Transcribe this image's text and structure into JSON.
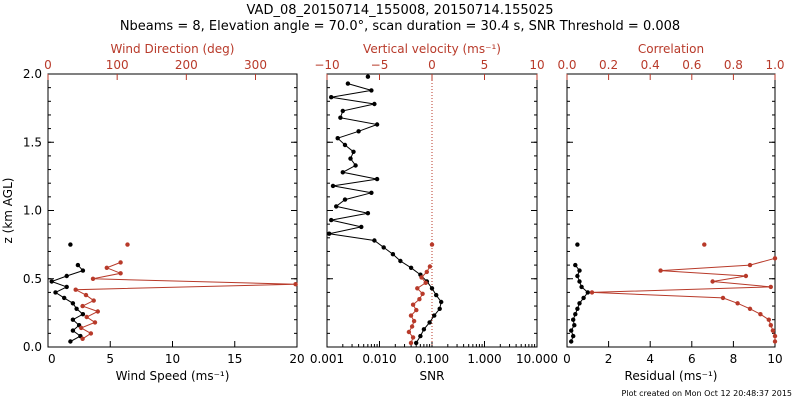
{
  "figure": {
    "title_line1": "VAD_08_20150714_155008, 20150714.155025",
    "title_line2": "Nbeams = 8, Elevation angle = 70.0°, scan duration = 30.4 s, SNR Threshold = 0.008",
    "footer": "Plot created on Mon Oct 12 20:48:37 2015",
    "colors": {
      "black": "#000000",
      "red": "#b83a2a"
    },
    "ylabel": "z (km AGL)",
    "ylim": [
      0,
      2.0
    ],
    "yticks": [
      "0.0",
      "0.5",
      "1.0",
      "1.5",
      "2.0"
    ]
  },
  "chart_data": [
    {
      "type": "line",
      "xlabel": "Wind Speed (ms⁻¹)",
      "top_xlabel": "Wind Direction (deg)",
      "xlim": [
        0,
        20
      ],
      "xticks": [
        "0",
        "5",
        "10",
        "15",
        "20"
      ],
      "top_xlim": [
        0,
        360
      ],
      "top_xticks": [
        "0",
        "100",
        "200",
        "300"
      ],
      "series": [
        {
          "axis": "bottom",
          "color": "black",
          "z": [
            0.04,
            0.08,
            0.12,
            0.16,
            0.2,
            0.24,
            0.28,
            0.32,
            0.36,
            0.4,
            0.44,
            0.48,
            0.52,
            0.56,
            0.6,
            0.75
          ],
          "values": [
            1.8,
            2.6,
            2.0,
            2.5,
            2.0,
            2.8,
            2.3,
            2.0,
            1.3,
            0.6,
            1.5,
            0.3,
            1.5,
            2.8,
            2.4,
            1.8
          ]
        },
        {
          "axis": "top",
          "color": "red",
          "z": [
            0.06,
            0.1,
            0.14,
            0.18,
            0.22,
            0.26,
            0.3,
            0.34,
            0.38,
            0.42,
            0.46,
            0.5,
            0.54,
            0.58,
            0.62,
            0.75
          ],
          "values": [
            50,
            62,
            48,
            68,
            56,
            72,
            50,
            66,
            55,
            40,
            358,
            65,
            105,
            85,
            105,
            115
          ]
        }
      ]
    },
    {
      "type": "line",
      "xlabel": "SNR",
      "top_xlabel": "Vertical velocity (ms⁻¹)",
      "xscale": "log",
      "xlim": [
        0.001,
        10
      ],
      "xticks": [
        "0.001",
        "0.010",
        "0.100",
        "1.000",
        "10.000"
      ],
      "top_xlim": [
        -10,
        10
      ],
      "top_xticks": [
        "−10",
        "−5",
        "0",
        "5",
        "10"
      ],
      "series": [
        {
          "axis": "bottom",
          "color": "black",
          "z": [
            0.03,
            0.08,
            0.13,
            0.18,
            0.23,
            0.28,
            0.33,
            0.38,
            0.43,
            0.48,
            0.53,
            0.58,
            0.63,
            0.68,
            0.73,
            0.78,
            0.83,
            0.88,
            0.93,
            0.98,
            1.03,
            1.08,
            1.13,
            1.18,
            1.23,
            1.28,
            1.33,
            1.38,
            1.43,
            1.48,
            1.53,
            1.58,
            1.63,
            1.68,
            1.73,
            1.78,
            1.83,
            1.88,
            1.93,
            1.98
          ],
          "values": [
            0.05,
            0.06,
            0.07,
            0.09,
            0.11,
            0.14,
            0.15,
            0.12,
            0.1,
            0.08,
            0.06,
            0.04,
            0.025,
            0.018,
            0.012,
            0.008,
            0.0011,
            0.0045,
            0.0012,
            0.006,
            0.0015,
            0.0022,
            0.007,
            0.0013,
            0.009,
            0.002,
            0.0035,
            0.0028,
            0.0032,
            0.0022,
            0.0016,
            0.004,
            0.009,
            0.0018,
            0.002,
            0.008,
            0.0012,
            0.007,
            0.0025,
            0.006
          ]
        },
        {
          "axis": "top",
          "color": "red",
          "z": [
            0.03,
            0.07,
            0.11,
            0.15,
            0.19,
            0.23,
            0.27,
            0.31,
            0.35,
            0.39,
            0.43,
            0.47,
            0.51,
            0.55,
            0.59,
            0.75
          ],
          "values": [
            -2.0,
            -1.8,
            -2.2,
            -1.9,
            -1.7,
            -2.0,
            -1.5,
            -1.8,
            -1.2,
            -0.9,
            -1.4,
            -0.6,
            -1.0,
            -0.5,
            -0.2,
            0.0
          ]
        }
      ]
    },
    {
      "type": "line",
      "xlabel": "Residual (ms⁻¹)",
      "top_xlabel": "Correlation",
      "xlim": [
        0,
        10
      ],
      "xticks": [
        "0",
        "2",
        "4",
        "6",
        "8",
        "10"
      ],
      "top_xlim": [
        0,
        1.0
      ],
      "top_xticks": [
        "0.0",
        "0.2",
        "0.4",
        "0.6",
        "0.8",
        "1.0"
      ],
      "series": [
        {
          "axis": "bottom",
          "color": "black",
          "z": [
            0.04,
            0.08,
            0.12,
            0.16,
            0.2,
            0.24,
            0.28,
            0.32,
            0.36,
            0.4,
            0.44,
            0.48,
            0.52,
            0.56,
            0.6,
            0.75
          ],
          "values": [
            0.2,
            0.3,
            0.2,
            0.35,
            0.3,
            0.4,
            0.5,
            0.6,
            0.8,
            1.0,
            0.7,
            0.6,
            0.5,
            0.6,
            0.4,
            0.5
          ]
        },
        {
          "axis": "top",
          "color": "red",
          "z": [
            0.04,
            0.08,
            0.12,
            0.16,
            0.2,
            0.24,
            0.28,
            0.32,
            0.36,
            0.4,
            0.44,
            0.48,
            0.52,
            0.56,
            0.6,
            0.65,
            0.75
          ],
          "values": [
            1.0,
            1.0,
            0.99,
            0.98,
            0.97,
            0.93,
            0.88,
            0.82,
            0.75,
            0.12,
            0.98,
            0.7,
            0.86,
            0.45,
            0.88,
            1.0,
            0.66
          ]
        }
      ]
    }
  ]
}
